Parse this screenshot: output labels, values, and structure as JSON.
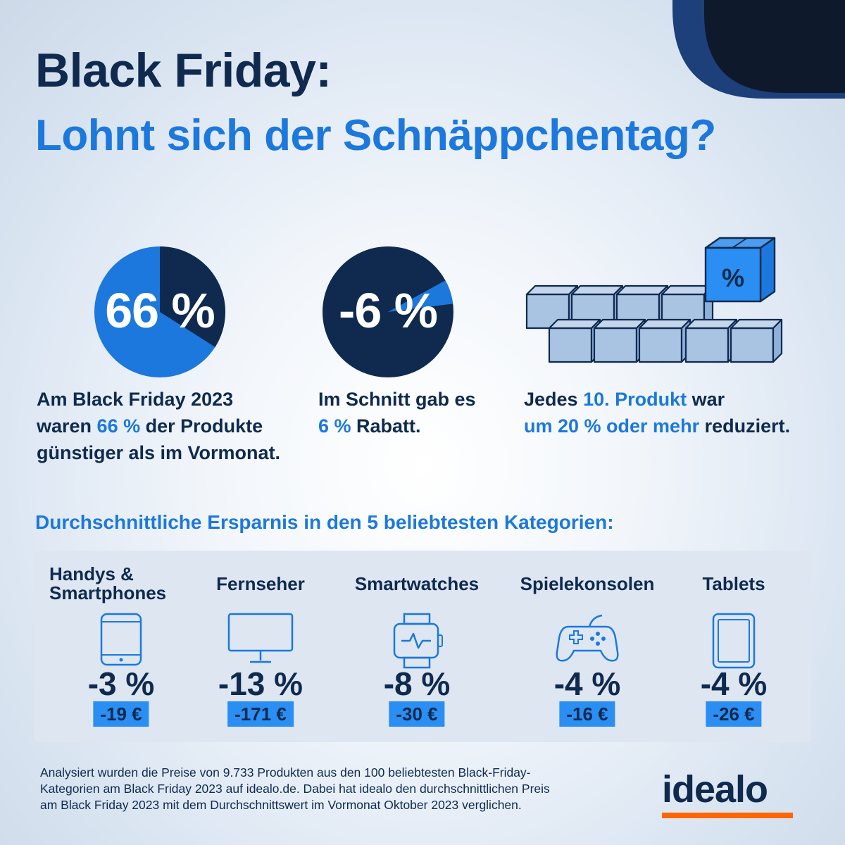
{
  "title": {
    "line1": "Black Friday:",
    "line2": "Lohnt sich der Schnäppchentag?"
  },
  "stats": [
    {
      "pie_label": "66 %",
      "share": 0.66,
      "lines": [
        {
          "a": "Am Black Friday 2023",
          "h": "",
          "b": ""
        },
        {
          "a": "waren ",
          "h": "66 %",
          "b": " der Produkte"
        },
        {
          "a": "günstiger als im Vormonat.",
          "h": "",
          "b": ""
        }
      ]
    },
    {
      "pie_label": "-6 %",
      "share": 0.06,
      "lines": [
        {
          "a": "Im Schnitt gab es",
          "h": "",
          "b": ""
        },
        {
          "a": "",
          "h": "6 %",
          "b": " Rabatt."
        }
      ]
    },
    {
      "box_label": "%",
      "lines": [
        {
          "a": "Jedes ",
          "h": "10. Produkt",
          "b": " war"
        },
        {
          "a": "",
          "h": "um 20 % oder mehr",
          "b": " reduziert."
        }
      ]
    }
  ],
  "section_title": "Durchschnittliche Ersparnis in den 5 beliebtesten Kategorien:",
  "categories": [
    {
      "name_l1": "Handys &",
      "name_l2": "Smartphones",
      "icon": "smartphone-icon",
      "pct": "-3 %",
      "eur": "-19 €"
    },
    {
      "name_l1": "Fernseher",
      "name_l2": "",
      "icon": "tv-icon",
      "pct": "-13 %",
      "eur": "-171 €"
    },
    {
      "name_l1": "Smartwatches",
      "name_l2": "",
      "icon": "smartwatch-icon",
      "pct": "-8 %",
      "eur": "-30 €"
    },
    {
      "name_l1": "Spielekonsolen",
      "name_l2": "",
      "icon": "gamepad-icon",
      "pct": "-4 %",
      "eur": "-16 €"
    },
    {
      "name_l1": "Tablets",
      "name_l2": "",
      "icon": "tablet-icon",
      "pct": "-4 %",
      "eur": "-26 €"
    }
  ],
  "footnote": {
    "l1": "Analysiert wurden die Preise von 9.733 Produkten aus den 100 beliebtesten Black-Friday-",
    "l2": "Kategorien am Black Friday 2023 auf idealo.de. Dabei hat idealo den durchschnittlichen Preis",
    "l3": "am Black Friday 2023 mit dem Durchschnittswert im Vormonat Oktober 2023 verglichen."
  },
  "logo": "idealo",
  "colors": {
    "navy": "#0f2a4e",
    "blue": "#1c78dc",
    "bright_blue": "#2a8ef3",
    "box_fill": "#a9c3e2",
    "orange": "#ff6600"
  }
}
